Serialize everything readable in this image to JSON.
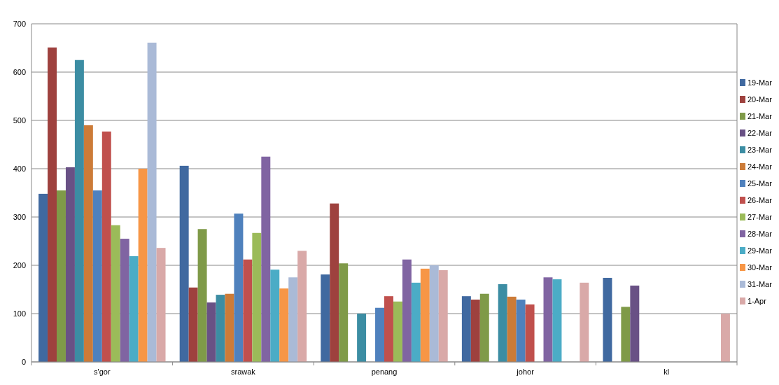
{
  "chart_data": {
    "type": "bar",
    "categories": [
      "s'gor",
      "srawak",
      "penang",
      "johor",
      "kl"
    ],
    "ylim": [
      0,
      700
    ],
    "yticks": [
      0,
      100,
      200,
      300,
      400,
      500,
      600,
      700
    ],
    "grid": "y",
    "legend": "right",
    "series": [
      {
        "name": "19-Mar",
        "color": "#4069a0",
        "values": [
          348,
          406,
          181,
          136,
          174
        ]
      },
      {
        "name": "20-Mar",
        "color": "#9e413e",
        "values": [
          651,
          154,
          328,
          129,
          null
        ]
      },
      {
        "name": "21-Mar",
        "color": "#7f9a48",
        "values": [
          355,
          275,
          204,
          141,
          114
        ]
      },
      {
        "name": "22-Mar",
        "color": "#695185",
        "values": [
          403,
          123,
          null,
          null,
          158
        ]
      },
      {
        "name": "23-Mar",
        "color": "#3c8da3",
        "values": [
          625,
          139,
          100,
          161,
          null
        ]
      },
      {
        "name": "24-Mar",
        "color": "#cc7b38",
        "values": [
          490,
          141,
          null,
          135,
          null
        ]
      },
      {
        "name": "25-Mar",
        "color": "#4f81bd",
        "values": [
          355,
          307,
          112,
          129,
          null
        ]
      },
      {
        "name": "26-Mar",
        "color": "#c0504d",
        "values": [
          477,
          212,
          136,
          119,
          null
        ]
      },
      {
        "name": "27-Mar",
        "color": "#9bbb59",
        "values": [
          283,
          267,
          125,
          null,
          null
        ]
      },
      {
        "name": "28-Mar",
        "color": "#8064a2",
        "values": [
          255,
          425,
          212,
          175,
          null
        ]
      },
      {
        "name": "29-Mar",
        "color": "#4bacc6",
        "values": [
          219,
          191,
          164,
          171,
          null
        ]
      },
      {
        "name": "30-Mar",
        "color": "#f79646",
        "values": [
          400,
          152,
          193,
          null,
          null
        ]
      },
      {
        "name": "31-Mar",
        "color": "#aabad7",
        "values": [
          661,
          175,
          200,
          null,
          null
        ]
      },
      {
        "name": "1-Apr",
        "color": "#d9a9a8",
        "values": [
          236,
          230,
          190,
          164,
          100
        ]
      }
    ]
  }
}
